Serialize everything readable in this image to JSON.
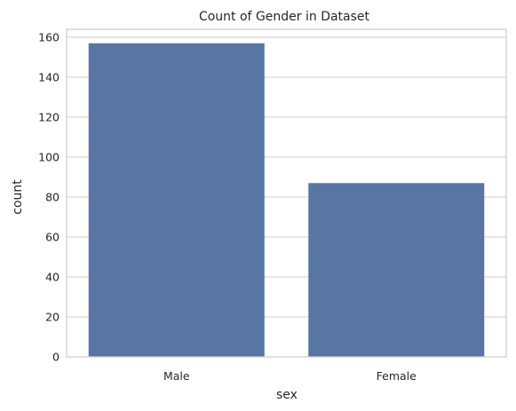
{
  "chart_data": {
    "type": "bar",
    "title": "Count of Gender in Dataset",
    "xlabel": "sex",
    "ylabel": "count",
    "categories": [
      "Male",
      "Female"
    ],
    "values": [
      157,
      87
    ],
    "ylim": [
      0,
      164
    ],
    "yticks": [
      0,
      20,
      40,
      60,
      80,
      100,
      120,
      140,
      160
    ],
    "grid": true,
    "legend": "none",
    "colors": {
      "bar": "#5975a4",
      "grid": "#cccccc",
      "axis_frame": "#cccccc",
      "background": "#ffffff"
    }
  }
}
